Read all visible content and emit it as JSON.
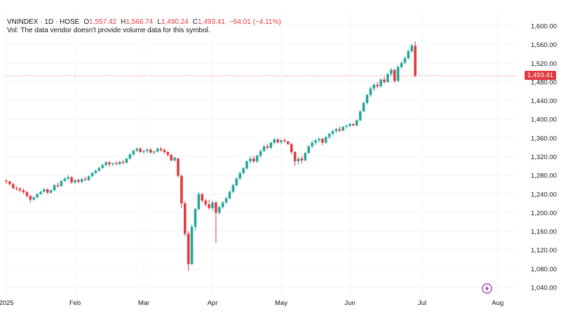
{
  "legend": {
    "symbol": "VNINDEX · 1D · HOSE",
    "open_label": "O",
    "open": "1,557.42",
    "high_label": "H",
    "high": "1,566.74",
    "low_label": "L",
    "low": "1,490.24",
    "close_label": "C",
    "close": "1,493.41",
    "change": "−64.01 (−4.11%)",
    "volume_note": "Vol: The data vendor doesn't provide volume data for this symbol."
  },
  "last_price_tag": "1,493.41",
  "colors": {
    "up": "#26a69a",
    "down": "#e03a3e",
    "grid": "#f0f3fa",
    "axis_text": "#131722",
    "bolt": "#9c27b0"
  },
  "icons": {
    "bolt": "lightning-bolt-icon"
  },
  "chart_data": {
    "type": "candlestick",
    "title": "VNINDEX · 1D · HOSE",
    "xlabel": "",
    "ylabel": "",
    "ylim": [
      1020,
      1640
    ],
    "yticks": [
      1040,
      1080,
      1120,
      1160,
      1200,
      1240,
      1280,
      1320,
      1360,
      1400,
      1440,
      1480,
      1520,
      1560,
      1600
    ],
    "ytick_labels": [
      "1,040.00",
      "1,080.00",
      "1,120.00",
      "1,160.00",
      "1,200.00",
      "1,240.00",
      "1,280.00",
      "1,320.00",
      "1,360.00",
      "1,400.00",
      "1,440.00",
      "1,480.00",
      "1,520.00",
      "1,560.00",
      "1,600.00"
    ],
    "xticks": [
      {
        "label": "2025",
        "index": 0
      },
      {
        "label": "Feb",
        "index": 20
      },
      {
        "label": "Mar",
        "index": 40
      },
      {
        "label": "Apr",
        "index": 60
      },
      {
        "label": "May",
        "index": 80
      },
      {
        "label": "Jun",
        "index": 100
      },
      {
        "label": "Jul",
        "index": 121
      },
      {
        "label": "Aug",
        "index": 143
      }
    ],
    "last_close": 1493.41,
    "ohlc": [
      [
        1269,
        1271,
        1262,
        1267
      ],
      [
        1267,
        1269,
        1258,
        1261
      ],
      [
        1261,
        1264,
        1250,
        1253
      ],
      [
        1253,
        1257,
        1247,
        1251
      ],
      [
        1251,
        1255,
        1244,
        1248
      ],
      [
        1248,
        1252,
        1240,
        1244
      ],
      [
        1244,
        1247,
        1232,
        1236
      ],
      [
        1236,
        1238,
        1222,
        1228
      ],
      [
        1228,
        1236,
        1226,
        1233
      ],
      [
        1233,
        1241,
        1231,
        1240
      ],
      [
        1240,
        1247,
        1238,
        1245
      ],
      [
        1245,
        1253,
        1243,
        1250
      ],
      [
        1250,
        1252,
        1240,
        1243
      ],
      [
        1243,
        1250,
        1241,
        1248
      ],
      [
        1248,
        1262,
        1246,
        1259
      ],
      [
        1259,
        1264,
        1254,
        1257
      ],
      [
        1257,
        1270,
        1255,
        1268
      ],
      [
        1268,
        1276,
        1266,
        1273
      ],
      [
        1273,
        1281,
        1268,
        1276
      ],
      [
        1276,
        1278,
        1262,
        1265
      ],
      [
        1265,
        1272,
        1262,
        1270
      ],
      [
        1270,
        1274,
        1264,
        1266
      ],
      [
        1266,
        1275,
        1264,
        1272
      ],
      [
        1272,
        1277,
        1268,
        1270
      ],
      [
        1270,
        1280,
        1268,
        1278
      ],
      [
        1278,
        1287,
        1276,
        1285
      ],
      [
        1285,
        1292,
        1283,
        1290
      ],
      [
        1290,
        1298,
        1288,
        1296
      ],
      [
        1296,
        1305,
        1294,
        1302
      ],
      [
        1302,
        1310,
        1300,
        1308
      ],
      [
        1308,
        1310,
        1298,
        1304
      ],
      [
        1304,
        1307,
        1300,
        1306
      ],
      [
        1306,
        1310,
        1302,
        1304
      ],
      [
        1304,
        1311,
        1302,
        1309
      ],
      [
        1309,
        1313,
        1304,
        1307
      ],
      [
        1307,
        1318,
        1306,
        1316
      ],
      [
        1316,
        1328,
        1314,
        1325
      ],
      [
        1325,
        1335,
        1322,
        1333
      ],
      [
        1333,
        1340,
        1330,
        1337
      ],
      [
        1337,
        1340,
        1328,
        1330
      ],
      [
        1330,
        1334,
        1326,
        1332
      ],
      [
        1332,
        1338,
        1328,
        1335
      ],
      [
        1335,
        1338,
        1326,
        1329
      ],
      [
        1329,
        1333,
        1324,
        1331
      ],
      [
        1331,
        1340,
        1329,
        1337
      ],
      [
        1337,
        1341,
        1331,
        1334
      ],
      [
        1334,
        1338,
        1327,
        1330
      ],
      [
        1330,
        1332,
        1320,
        1324
      ],
      [
        1324,
        1326,
        1310,
        1312
      ],
      [
        1312,
        1320,
        1309,
        1318
      ],
      [
        1316,
        1318,
        1275,
        1279
      ],
      [
        1279,
        1282,
        1210,
        1220
      ],
      [
        1220,
        1225,
        1150,
        1155
      ],
      [
        1155,
        1160,
        1075,
        1090
      ],
      [
        1090,
        1175,
        1088,
        1170
      ],
      [
        1170,
        1210,
        1162,
        1208
      ],
      [
        1208,
        1245,
        1205,
        1240
      ],
      [
        1240,
        1242,
        1222,
        1226
      ],
      [
        1226,
        1230,
        1213,
        1218
      ],
      [
        1218,
        1228,
        1206,
        1210
      ],
      [
        1210,
        1226,
        1204,
        1222
      ],
      [
        1222,
        1224,
        1135,
        1200
      ],
      [
        1200,
        1215,
        1196,
        1212
      ],
      [
        1212,
        1225,
        1209,
        1222
      ],
      [
        1222,
        1235,
        1219,
        1231
      ],
      [
        1231,
        1248,
        1229,
        1245
      ],
      [
        1245,
        1262,
        1242,
        1259
      ],
      [
        1259,
        1276,
        1256,
        1273
      ],
      [
        1273,
        1288,
        1270,
        1285
      ],
      [
        1285,
        1298,
        1282,
        1295
      ],
      [
        1295,
        1312,
        1292,
        1310
      ],
      [
        1310,
        1320,
        1305,
        1316
      ],
      [
        1316,
        1322,
        1306,
        1310
      ],
      [
        1310,
        1325,
        1306,
        1322
      ],
      [
        1322,
        1335,
        1318,
        1332
      ],
      [
        1332,
        1345,
        1330,
        1342
      ],
      [
        1342,
        1348,
        1335,
        1339
      ],
      [
        1339,
        1352,
        1336,
        1350
      ],
      [
        1350,
        1360,
        1346,
        1357
      ],
      [
        1357,
        1359,
        1348,
        1351
      ],
      [
        1351,
        1358,
        1347,
        1355
      ],
      [
        1355,
        1360,
        1350,
        1353
      ],
      [
        1353,
        1352,
        1345,
        1347
      ],
      [
        1347,
        1350,
        1325,
        1330
      ],
      [
        1330,
        1332,
        1300,
        1310
      ],
      [
        1310,
        1320,
        1302,
        1316
      ],
      [
        1316,
        1322,
        1305,
        1312
      ],
      [
        1312,
        1330,
        1310,
        1328
      ],
      [
        1328,
        1345,
        1326,
        1342
      ],
      [
        1342,
        1355,
        1338,
        1350
      ],
      [
        1350,
        1358,
        1345,
        1355
      ],
      [
        1355,
        1362,
        1350,
        1358
      ],
      [
        1358,
        1360,
        1345,
        1350
      ],
      [
        1350,
        1365,
        1348,
        1362
      ],
      [
        1362,
        1372,
        1358,
        1369
      ],
      [
        1369,
        1378,
        1365,
        1375
      ],
      [
        1375,
        1382,
        1370,
        1379
      ],
      [
        1379,
        1385,
        1372,
        1376
      ],
      [
        1376,
        1386,
        1374,
        1384
      ],
      [
        1384,
        1390,
        1380,
        1386
      ],
      [
        1386,
        1393,
        1383,
        1390
      ],
      [
        1390,
        1392,
        1385,
        1387
      ],
      [
        1387,
        1400,
        1385,
        1398
      ],
      [
        1398,
        1420,
        1396,
        1417
      ],
      [
        1417,
        1438,
        1415,
        1435
      ],
      [
        1435,
        1455,
        1432,
        1452
      ],
      [
        1452,
        1470,
        1448,
        1466
      ],
      [
        1466,
        1478,
        1460,
        1474
      ],
      [
        1474,
        1480,
        1466,
        1471
      ],
      [
        1471,
        1488,
        1468,
        1485
      ],
      [
        1485,
        1492,
        1476,
        1480
      ],
      [
        1480,
        1500,
        1478,
        1497
      ],
      [
        1497,
        1510,
        1492,
        1506
      ],
      [
        1506,
        1508,
        1478,
        1482
      ],
      [
        1482,
        1516,
        1480,
        1512
      ],
      [
        1512,
        1525,
        1508,
        1521
      ],
      [
        1521,
        1535,
        1518,
        1531
      ],
      [
        1531,
        1550,
        1528,
        1546
      ],
      [
        1546,
        1562,
        1542,
        1558
      ],
      [
        1557.42,
        1566.74,
        1490.24,
        1493.41
      ]
    ]
  }
}
